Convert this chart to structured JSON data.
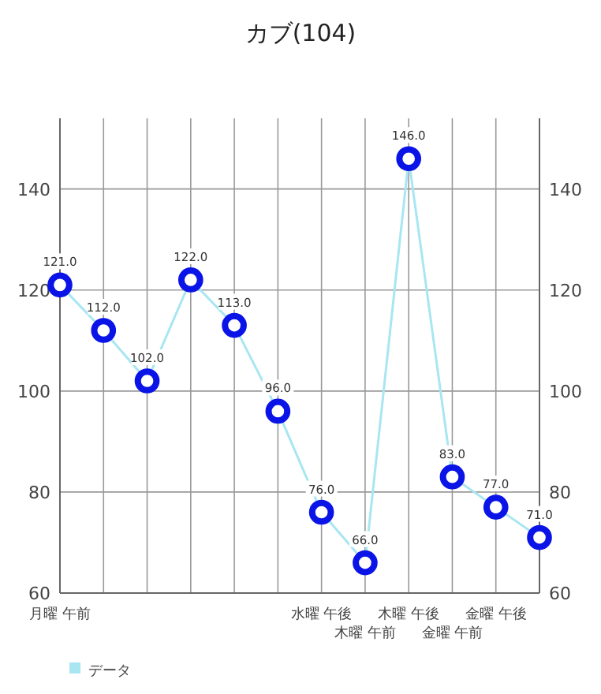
{
  "chart_data": {
    "type": "line",
    "title": "カブ(104)",
    "categories": [
      "月曜 午前",
      null,
      null,
      null,
      null,
      null,
      "水曜 午後",
      "木曜 午前",
      "木曜 午後",
      "金曜 午前",
      "金曜 午後",
      null
    ],
    "series": [
      {
        "name": "データ",
        "color": "#a8e6f2",
        "values": [
          121,
          112,
          102,
          122,
          113,
          96,
          76,
          66,
          146,
          83,
          77,
          71
        ],
        "value_labels": [
          "121.0",
          "112.0",
          "102.0",
          "122.0",
          "113.0",
          "96.0",
          "76.0",
          "66.0",
          "146.0",
          "83.0",
          "77.0",
          "71.0"
        ]
      }
    ],
    "ylim": [
      60,
      154
    ],
    "yticks": [
      60,
      80,
      100,
      120,
      140
    ],
    "y2lim": [
      60,
      154
    ],
    "y2ticks": [
      60,
      80,
      100,
      120,
      140
    ],
    "grid": true,
    "legend": "bottom left",
    "marker": "circle"
  }
}
